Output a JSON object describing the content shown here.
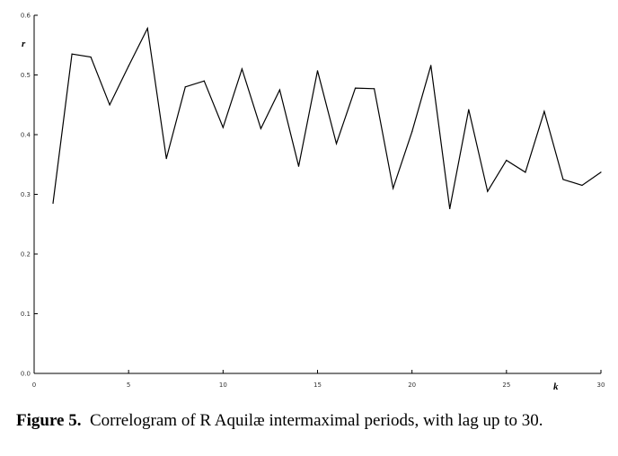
{
  "chart_data": {
    "type": "line",
    "title": "",
    "xlabel": "k",
    "ylabel": "r",
    "xlim": [
      0,
      30
    ],
    "ylim": [
      0.0,
      0.6
    ],
    "x_ticks": [
      0,
      5,
      10,
      15,
      20,
      25,
      30
    ],
    "x_tick_labels": [
      "0",
      "5",
      "10",
      "15",
      "20",
      "25",
      "30"
    ],
    "y_ticks": [
      0.0,
      0.1,
      0.2,
      0.3,
      0.4,
      0.5,
      0.6
    ],
    "y_tick_labels": [
      "0.0",
      "0.1",
      "0.2",
      "0.3",
      "0.4",
      "0.5",
      "0.6"
    ],
    "grid": false,
    "legend": "none",
    "line_color": "#000000",
    "series": [
      {
        "x": [
          1,
          2,
          3,
          4,
          5,
          6,
          7,
          8,
          9,
          10,
          11,
          12,
          13,
          14,
          15,
          16,
          17,
          18,
          19,
          20,
          21,
          22,
          23,
          24,
          25,
          26,
          27,
          28,
          29,
          30
        ],
        "values": [
          0.285,
          0.535,
          0.53,
          0.45,
          0.515,
          0.578,
          0.36,
          0.48,
          0.49,
          0.412,
          0.51,
          0.41,
          0.475,
          0.347,
          0.507,
          0.385,
          0.478,
          0.477,
          0.31,
          0.405,
          0.516,
          0.276,
          0.442,
          0.305,
          0.357,
          0.337,
          0.439,
          0.325,
          0.315,
          0.337
        ]
      }
    ]
  },
  "caption": {
    "label": "Figure 5.",
    "text": "Correlogram of R Aquilæ intermaximal periods, with lag up to 30."
  }
}
